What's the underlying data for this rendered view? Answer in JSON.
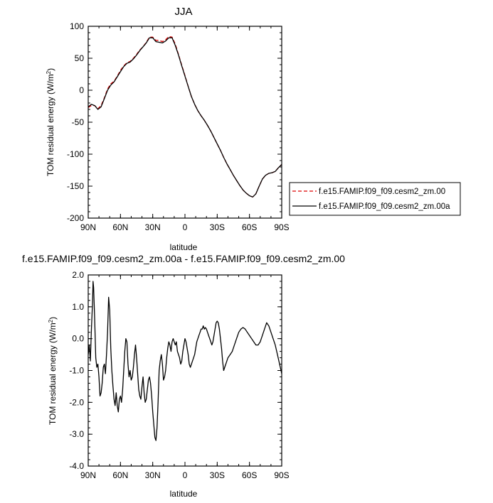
{
  "chart_data": [
    {
      "type": "line",
      "title": "JJA",
      "xlabel": "latitude",
      "ylabel": "TOM residual energy (W/m²)",
      "ylabel_main": "TOM residual energy (W/m",
      "ylabel_sup": "2",
      "ylabel_close": ")",
      "xlim": [
        90,
        -90
      ],
      "ylim": [
        -200,
        100
      ],
      "x_ticks": [
        90,
        60,
        30,
        0,
        -30,
        -60,
        -90
      ],
      "x_tick_labels": [
        "90N",
        "60N",
        "30N",
        "0",
        "30S",
        "60S",
        "90S"
      ],
      "y_ticks": [
        -200,
        -150,
        -100,
        -50,
        0,
        50,
        100
      ],
      "y_tick_labels": [
        "-200",
        "-150",
        "-100",
        "-50",
        "0",
        "50",
        "100"
      ],
      "legend_position": "right",
      "series": [
        {
          "name": "f.e15.FAMIP.f09_f09.cesm2_zm.00",
          "color": "#dd0000",
          "dash": "dashed",
          "x": [
            90,
            87,
            84,
            81,
            78,
            75,
            72,
            69,
            66,
            63,
            60,
            57,
            54,
            51,
            48,
            45,
            42,
            39,
            36,
            33,
            30,
            27,
            24,
            21,
            18,
            15,
            12,
            9,
            6,
            3,
            0,
            -3,
            -6,
            -9,
            -12,
            -15,
            -18,
            -21,
            -24,
            -27,
            -30,
            -33,
            -36,
            -39,
            -42,
            -45,
            -48,
            -51,
            -54,
            -57,
            -60,
            -63,
            -66,
            -69,
            -72,
            -75,
            -78,
            -81,
            -84,
            -87,
            -90
          ],
          "y": [
            -27,
            -24,
            -24,
            -29,
            -24,
            -12,
            2,
            10,
            14,
            22,
            31,
            38,
            43,
            45,
            50,
            56,
            63,
            68,
            75,
            83,
            83,
            78,
            78,
            76,
            79,
            84,
            83,
            72,
            56,
            39,
            23,
            6,
            -10,
            -22,
            -32,
            -40,
            -47,
            -55,
            -64,
            -74,
            -84,
            -94,
            -105,
            -115,
            -124,
            -133,
            -141,
            -149,
            -156,
            -161,
            -165,
            -167,
            -162,
            -150,
            -139,
            -133,
            -130,
            -129,
            -127,
            -121,
            -116
          ]
        },
        {
          "name": "f.e15.FAMIP.f09_f09.cesm2_zm.00a",
          "color": "#000000",
          "dash": "solid",
          "x": [
            90,
            87,
            84,
            81,
            78,
            75,
            72,
            69,
            66,
            63,
            60,
            57,
            54,
            51,
            48,
            45,
            42,
            39,
            36,
            33,
            30,
            27,
            24,
            21,
            18,
            15,
            12,
            9,
            6,
            3,
            0,
            -3,
            -6,
            -9,
            -12,
            -15,
            -18,
            -21,
            -24,
            -27,
            -30,
            -33,
            -36,
            -39,
            -42,
            -45,
            -48,
            -51,
            -54,
            -57,
            -60,
            -63,
            -66,
            -69,
            -72,
            -75,
            -78,
            -81,
            -84,
            -87,
            -90
          ],
          "y": [
            -26,
            -22,
            -24,
            -30,
            -26,
            -13,
            0,
            8,
            13,
            21,
            29,
            37,
            42,
            44,
            49,
            55,
            62,
            68,
            74,
            82,
            82,
            76,
            75,
            74,
            77,
            82,
            82,
            70,
            55,
            38,
            22,
            6,
            -10,
            -22,
            -32,
            -40,
            -47,
            -55,
            -64,
            -74,
            -84,
            -94,
            -105,
            -115,
            -124,
            -133,
            -141,
            -149,
            -156,
            -161,
            -165,
            -167,
            -162,
            -150,
            -139,
            -133,
            -130,
            -129,
            -127,
            -121,
            -116
          ]
        }
      ]
    },
    {
      "type": "line",
      "title": "f.e15.FAMIP.f09_f09.cesm2_zm.00a - f.e15.FAMIP.f09_f09.cesm2_zm.00",
      "xlabel": "latitude",
      "ylabel": "TOM residual energy (W/m²)",
      "ylabel_main": "TOM residual energy (W/m",
      "ylabel_sup": "2",
      "ylabel_close": ")",
      "xlim": [
        90,
        -90
      ],
      "ylim": [
        -4,
        2
      ],
      "x_ticks": [
        90,
        60,
        30,
        0,
        -30,
        -60,
        -90
      ],
      "x_tick_labels": [
        "90N",
        "60N",
        "30N",
        "0",
        "30S",
        "60S",
        "90S"
      ],
      "y_ticks": [
        -4,
        -3,
        -2,
        -1,
        0,
        1,
        2
      ],
      "y_tick_labels": [
        "-4.0",
        "-3.0",
        "-2.0",
        "-1.0",
        "0.0",
        "1.0",
        "2.0"
      ],
      "series": [
        {
          "name": "",
          "color": "#000000",
          "dash": "solid",
          "x": [
            90,
            89,
            88,
            87,
            86,
            85.5,
            85,
            84,
            83,
            82,
            81,
            80,
            79,
            78,
            77,
            76,
            75,
            74,
            73,
            72,
            71,
            70,
            69,
            68,
            67,
            66,
            65,
            64,
            63,
            62,
            61,
            60,
            59,
            58,
            57,
            56,
            55,
            54,
            53,
            52,
            51,
            50,
            49,
            48,
            47,
            46,
            45,
            44,
            43,
            42,
            41,
            40,
            39,
            38,
            37,
            36,
            35,
            34,
            33,
            32,
            31,
            30,
            29,
            28,
            27,
            26,
            25,
            24,
            23,
            22,
            21,
            20,
            19,
            18,
            17,
            16,
            15,
            14,
            13,
            12,
            11,
            10,
            9,
            8,
            7,
            6,
            5,
            4,
            3,
            2,
            1,
            0,
            -1,
            -2,
            -3,
            -4,
            -5,
            -6,
            -7,
            -8,
            -9,
            -10,
            -11,
            -12,
            -13,
            -14,
            -15,
            -16,
            -17,
            -18,
            -19,
            -20,
            -21,
            -22,
            -23,
            -24,
            -25,
            -26,
            -27,
            -28,
            -29,
            -30,
            -31,
            -32,
            -33,
            -34,
            -35,
            -36,
            -37,
            -38,
            -39,
            -40,
            -42,
            -44,
            -46,
            -48,
            -50,
            -52,
            -54,
            -56,
            -58,
            -60,
            -62,
            -64,
            -66,
            -68,
            -70,
            -72,
            -74,
            -76,
            -78,
            -80,
            -82,
            -84,
            -86,
            -88,
            -90
          ],
          "y": [
            -0.5,
            -0.2,
            -0.7,
            0.3,
            1.1,
            1.8,
            1.6,
            0.6,
            -0.6,
            -0.9,
            -0.8,
            -1.2,
            -1.8,
            -1.7,
            -1.4,
            -0.9,
            -0.8,
            -1.1,
            -0.5,
            0.2,
            1.3,
            0.9,
            -0.3,
            -1.0,
            -1.5,
            -1.9,
            -2.1,
            -1.7,
            -2.1,
            -2.3,
            -1.9,
            -1.8,
            -2.0,
            -1.6,
            -1.0,
            -0.4,
            0.0,
            -0.1,
            -0.8,
            -1.2,
            -1.0,
            -1.3,
            -1.2,
            -0.9,
            -0.5,
            -0.2,
            -0.6,
            -1.1,
            -1.6,
            -1.8,
            -1.9,
            -1.5,
            -1.2,
            -1.7,
            -2.0,
            -1.9,
            -1.6,
            -1.3,
            -1.2,
            -1.4,
            -1.8,
            -2.3,
            -2.7,
            -3.1,
            -3.2,
            -2.8,
            -2.0,
            -1.0,
            -0.7,
            -0.5,
            -0.8,
            -1.3,
            -1.2,
            -1.0,
            -0.6,
            -0.3,
            -0.1,
            -0.2,
            -0.4,
            -0.1,
            0.0,
            -0.1,
            -0.2,
            -0.1,
            -0.4,
            -0.5,
            -0.6,
            -0.8,
            -0.7,
            -0.4,
            -0.2,
            0.0,
            -0.1,
            -0.3,
            -0.5,
            -0.8,
            -0.9,
            -0.8,
            -0.7,
            -0.6,
            -0.5,
            -0.3,
            -0.1,
            0.0,
            0.1,
            0.2,
            0.3,
            0.3,
            0.4,
            0.3,
            0.35,
            0.3,
            0.2,
            0.1,
            0.0,
            -0.1,
            -0.2,
            -0.1,
            0.1,
            0.3,
            0.5,
            0.55,
            0.5,
            0.3,
            0.0,
            -0.3,
            -0.7,
            -1.0,
            -0.9,
            -0.8,
            -0.7,
            -0.6,
            -0.5,
            -0.4,
            -0.2,
            0.0,
            0.2,
            0.3,
            0.35,
            0.3,
            0.2,
            0.1,
            0.0,
            -0.1,
            -0.2,
            -0.2,
            -0.1,
            0.1,
            0.3,
            0.5,
            0.4,
            0.2,
            0.0,
            -0.2,
            -0.5,
            -0.8,
            -1.1
          ]
        }
      ]
    }
  ]
}
